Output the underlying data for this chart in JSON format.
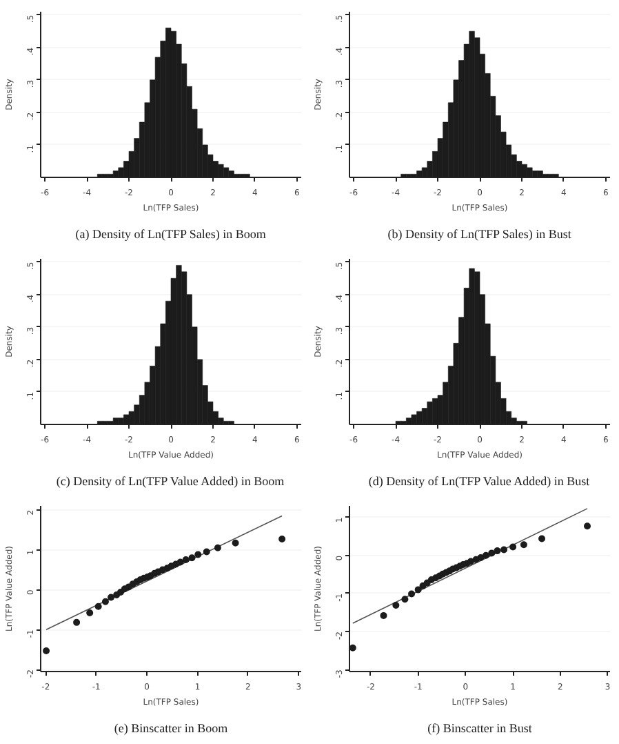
{
  "chart_data": [
    {
      "type": "histogram",
      "title": "(a) Density of Ln(TFP Sales) in Boom",
      "xlabel": "Ln(TFP Sales)",
      "ylabel": "Density",
      "color": "#1c1c1c",
      "grid": "y",
      "bins": [
        -6,
        -4,
        -3.75,
        -3.5,
        -3.25,
        -3,
        -2.75,
        -2.5,
        -2.25,
        -2,
        -1.75,
        -1.5,
        -1.25,
        -1,
        -0.75,
        -0.5,
        -0.25,
        0,
        0.25,
        0.5,
        0.75,
        1,
        1.25,
        1.5,
        1.75,
        2,
        2.25,
        2.5,
        2.75,
        3,
        3.25,
        3.5,
        3.75,
        4,
        6
      ],
      "values": [
        0.0,
        0.0,
        0.0,
        0.01,
        0.01,
        0.01,
        0.02,
        0.03,
        0.05,
        0.08,
        0.12,
        0.17,
        0.23,
        0.3,
        0.37,
        0.42,
        0.46,
        0.45,
        0.41,
        0.35,
        0.28,
        0.21,
        0.15,
        0.1,
        0.07,
        0.05,
        0.04,
        0.03,
        0.02,
        0.01,
        0.01,
        0.01,
        0.0,
        0.0
      ],
      "xlim": [
        -6.2,
        6.2
      ],
      "ylim": [
        0,
        0.51
      ],
      "xticks": [
        -6,
        -4,
        -2,
        0,
        2,
        4,
        6
      ],
      "yticks": [
        {
          "value": 0.1,
          "label": ".1"
        },
        {
          "value": 0.2,
          "label": ".2"
        },
        {
          "value": 0.3,
          "label": ".3"
        },
        {
          "value": 0.4,
          "label": ".4"
        },
        {
          "value": 0.5,
          "label": ".5"
        }
      ]
    },
    {
      "type": "histogram",
      "title": "(b) Density of Ln(TFP Sales) in Bust",
      "xlabel": "Ln(TFP Sales)",
      "ylabel": "Density",
      "color": "#1c1c1c",
      "grid": "y",
      "bins": [
        -6,
        -4,
        -3.75,
        -3.5,
        -3.25,
        -3,
        -2.75,
        -2.5,
        -2.25,
        -2,
        -1.75,
        -1.5,
        -1.25,
        -1,
        -0.75,
        -0.5,
        -0.25,
        0,
        0.25,
        0.5,
        0.75,
        1,
        1.25,
        1.5,
        1.75,
        2,
        2.25,
        2.5,
        2.75,
        3,
        3.25,
        3.5,
        3.75,
        4,
        6
      ],
      "values": [
        0.0,
        0.0,
        0.01,
        0.01,
        0.01,
        0.02,
        0.03,
        0.05,
        0.08,
        0.12,
        0.17,
        0.23,
        0.3,
        0.36,
        0.41,
        0.45,
        0.43,
        0.38,
        0.32,
        0.25,
        0.19,
        0.14,
        0.1,
        0.07,
        0.05,
        0.04,
        0.03,
        0.02,
        0.02,
        0.01,
        0.01,
        0.01,
        0.0,
        0.0
      ],
      "xlim": [
        -6.2,
        6.2
      ],
      "ylim": [
        0,
        0.51
      ],
      "xticks": [
        -6,
        -4,
        -2,
        0,
        2,
        4,
        6
      ],
      "yticks": [
        {
          "value": 0.1,
          "label": ".1"
        },
        {
          "value": 0.2,
          "label": ".2"
        },
        {
          "value": 0.3,
          "label": ".3"
        },
        {
          "value": 0.4,
          "label": ".4"
        },
        {
          "value": 0.5,
          "label": ".5"
        }
      ]
    },
    {
      "type": "histogram",
      "title": "(c) Density of Ln(TFP Value Added) in Boom",
      "xlabel": "Ln(TFP Value Added)",
      "ylabel": "Density",
      "color": "#1c1c1c",
      "grid": "y",
      "bins": [
        -6,
        -4,
        -3.75,
        -3.5,
        -3.25,
        -3,
        -2.75,
        -2.5,
        -2.25,
        -2,
        -1.75,
        -1.5,
        -1.25,
        -1,
        -0.75,
        -0.5,
        -0.25,
        0,
        0.25,
        0.5,
        0.75,
        1,
        1.25,
        1.5,
        1.75,
        2,
        2.25,
        2.5,
        2.75,
        3,
        3.25,
        3.5,
        3.75,
        4,
        6
      ],
      "values": [
        0.0,
        0.0,
        0.0,
        0.01,
        0.01,
        0.01,
        0.02,
        0.02,
        0.03,
        0.04,
        0.06,
        0.09,
        0.13,
        0.18,
        0.24,
        0.31,
        0.38,
        0.45,
        0.49,
        0.47,
        0.4,
        0.3,
        0.2,
        0.12,
        0.07,
        0.04,
        0.02,
        0.01,
        0.01,
        0.0,
        0.0,
        0.0,
        0.0,
        0.0
      ],
      "xlim": [
        -6.2,
        6.2
      ],
      "ylim": [
        0,
        0.51
      ],
      "xticks": [
        -6,
        -4,
        -2,
        0,
        2,
        4,
        6
      ],
      "yticks": [
        {
          "value": 0.1,
          "label": ".1"
        },
        {
          "value": 0.2,
          "label": ".2"
        },
        {
          "value": 0.3,
          "label": ".3"
        },
        {
          "value": 0.4,
          "label": ".4"
        },
        {
          "value": 0.5,
          "label": ".5"
        }
      ]
    },
    {
      "type": "histogram",
      "title": "(d) Density of Ln(TFP Value Added) in Bust",
      "xlabel": "Ln(TFP Value Added)",
      "ylabel": "Density",
      "color": "#1c1c1c",
      "grid": "y",
      "bins": [
        -6,
        -4,
        -3.75,
        -3.5,
        -3.25,
        -3,
        -2.75,
        -2.5,
        -2.25,
        -2,
        -1.75,
        -1.5,
        -1.25,
        -1,
        -0.75,
        -0.5,
        -0.25,
        0,
        0.25,
        0.5,
        0.75,
        1,
        1.25,
        1.5,
        1.75,
        2,
        2.25,
        2.5,
        2.75,
        3,
        3.25,
        3.5,
        3.75,
        4,
        6
      ],
      "values": [
        0.0,
        0.01,
        0.01,
        0.02,
        0.03,
        0.04,
        0.05,
        0.07,
        0.08,
        0.09,
        0.13,
        0.18,
        0.25,
        0.33,
        0.42,
        0.48,
        0.47,
        0.4,
        0.31,
        0.21,
        0.13,
        0.08,
        0.04,
        0.02,
        0.01,
        0.01,
        0.0,
        0.0,
        0.0,
        0.0,
        0.0,
        0.0,
        0.0,
        0.0
      ],
      "xlim": [
        -6.2,
        6.2
      ],
      "ylim": [
        0,
        0.51
      ],
      "xticks": [
        -6,
        -4,
        -2,
        0,
        2,
        4,
        6
      ],
      "yticks": [
        {
          "value": 0.1,
          "label": ".1"
        },
        {
          "value": 0.2,
          "label": ".2"
        },
        {
          "value": 0.3,
          "label": ".3"
        },
        {
          "value": 0.4,
          "label": ".4"
        },
        {
          "value": 0.5,
          "label": ".5"
        }
      ]
    },
    {
      "type": "scatter",
      "title": "(e) Binscatter in Boom",
      "xlabel": "Ln(TFP Sales)",
      "ylabel": "Ln(TFP Value Added)",
      "grid": "y",
      "marker": "circle",
      "series": [
        {
          "type": "scatter",
          "color": "#1c1c1c",
          "x": [
            -1.99,
            -1.39,
            -1.13,
            -0.96,
            -0.82,
            -0.71,
            -0.6,
            -0.52,
            -0.44,
            -0.36,
            -0.28,
            -0.2,
            -0.13,
            -0.06,
            0.01,
            0.07,
            0.15,
            0.22,
            0.31,
            0.4,
            0.48,
            0.57,
            0.66,
            0.77,
            0.89,
            1.01,
            1.18,
            1.4,
            1.75,
            2.67
          ],
          "values": [
            -1.53,
            -0.82,
            -0.58,
            -0.42,
            -0.3,
            -0.19,
            -0.13,
            -0.06,
            0.02,
            0.07,
            0.14,
            0.2,
            0.25,
            0.29,
            0.32,
            0.35,
            0.41,
            0.45,
            0.5,
            0.54,
            0.59,
            0.64,
            0.69,
            0.75,
            0.8,
            0.88,
            0.95,
            1.05,
            1.17,
            1.27
          ]
        },
        {
          "type": "line",
          "marker": "none",
          "color": "#555555",
          "x": [
            -1.99,
            2.67
          ],
          "values": [
            -1.0,
            1.85
          ]
        }
      ],
      "xlim": [
        -2.1,
        3.05
      ],
      "ylim": [
        -2.05,
        2.1
      ],
      "xticks": [
        -2,
        -1,
        0,
        1,
        2,
        3
      ],
      "yticks": [
        -2,
        -1,
        0,
        1,
        2
      ]
    },
    {
      "type": "scatter",
      "title": "(f) Binscatter in Bust",
      "xlabel": "Ln(TFP Sales)",
      "ylabel": "Ln(TFP Value Added)",
      "grid": "y",
      "marker": "circle",
      "series": [
        {
          "type": "scatter",
          "color": "#1c1c1c",
          "x": [
            -2.38,
            -1.73,
            -1.47,
            -1.28,
            -1.14,
            -1.0,
            -0.9,
            -0.81,
            -0.72,
            -0.63,
            -0.55,
            -0.48,
            -0.41,
            -0.34,
            -0.27,
            -0.19,
            -0.12,
            -0.05,
            0.03,
            0.11,
            0.22,
            0.32,
            0.43,
            0.55,
            0.67,
            0.81,
            1.0,
            1.23,
            1.61,
            2.57
          ],
          "values": [
            -2.43,
            -1.58,
            -1.31,
            -1.15,
            -1.01,
            -0.9,
            -0.8,
            -0.72,
            -0.64,
            -0.59,
            -0.54,
            -0.49,
            -0.45,
            -0.41,
            -0.36,
            -0.32,
            -0.28,
            -0.24,
            -0.21,
            -0.16,
            -0.11,
            -0.06,
            0.0,
            0.06,
            0.12,
            0.15,
            0.22,
            0.28,
            0.44,
            0.77
          ]
        },
        {
          "type": "line",
          "marker": "none",
          "color": "#555555",
          "x": [
            -2.38,
            2.57
          ],
          "values": [
            -1.78,
            1.23
          ]
        }
      ],
      "xlim": [
        -2.45,
        3.05
      ],
      "ylim": [
        -3.05,
        1.3
      ],
      "xticks": [
        -2,
        -1,
        0,
        1,
        2,
        3
      ],
      "yticks": [
        -3,
        -2,
        -1,
        0,
        1
      ]
    }
  ]
}
